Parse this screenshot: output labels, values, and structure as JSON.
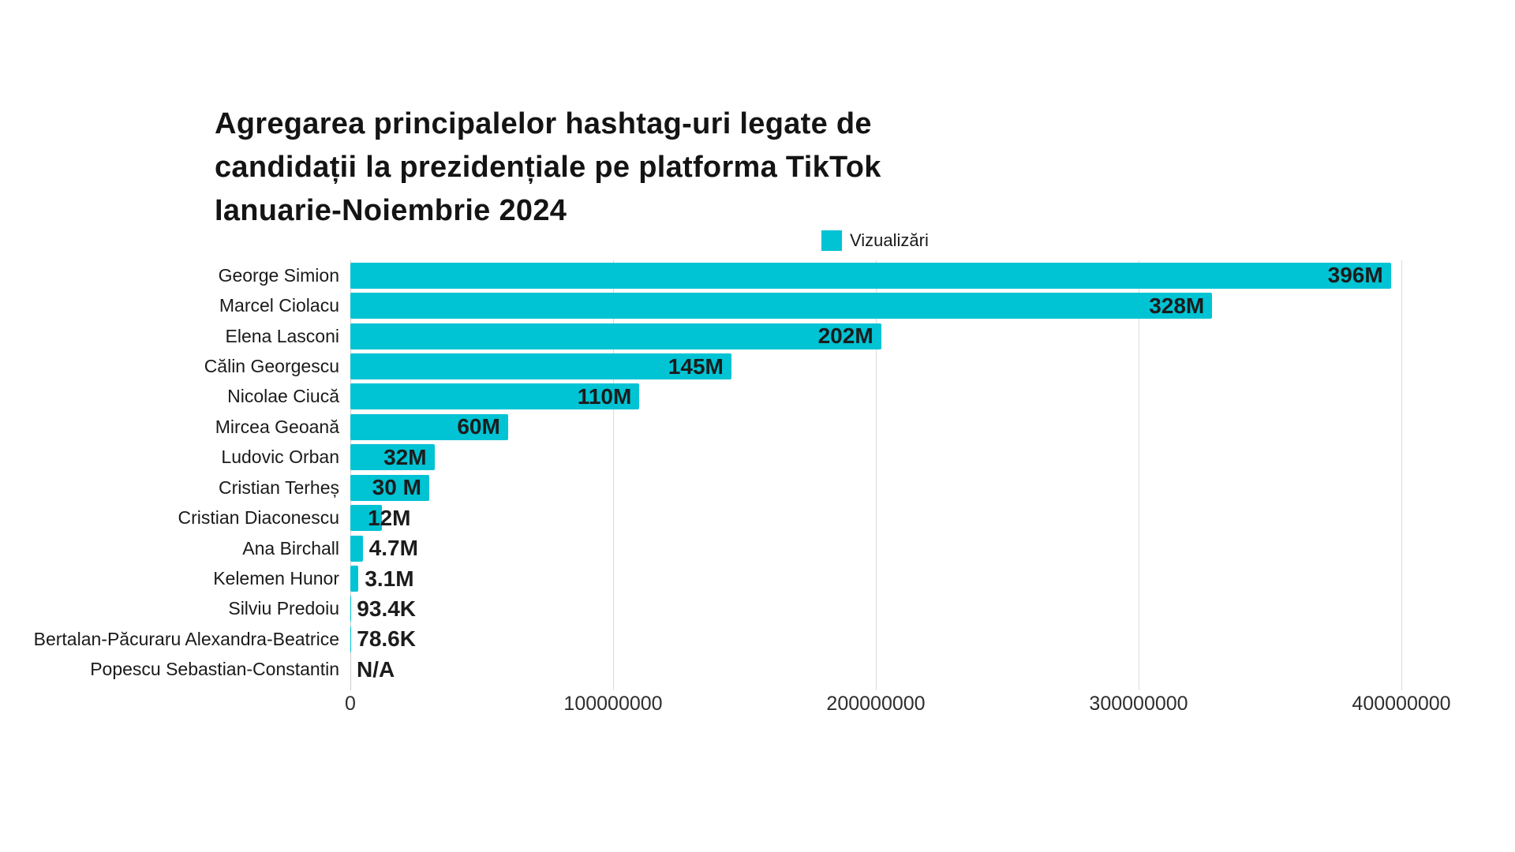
{
  "chart_data": {
    "type": "bar",
    "orientation": "horizontal",
    "title": "Agregarea principalelor hashtag-uri legate de candidații la prezidențiale pe platforma TikTok Ianuarie-Noiembrie 2024",
    "title_lines": [
      "Agregarea principalelor hashtag-uri legate de",
      "candidații la prezidențiale pe platforma TikTok",
      "Ianuarie-Noiembrie 2024"
    ],
    "legend": {
      "label": "Vizualizări",
      "position": "top-center"
    },
    "categories": [
      "George Simion",
      "Marcel Ciolacu",
      "Elena Lasconi",
      "Călin Georgescu",
      "Nicolae Ciucă",
      "Mircea Geoană",
      "Ludovic Orban",
      "Cristian Terheș",
      "Cristian Diaconescu",
      "Ana Birchall",
      "Kelemen Hunor",
      "Silviu Predoiu",
      "Bertalan-Păcuraru Alexandra-Beatrice",
      "Popescu Sebastian-Constantin"
    ],
    "values": [
      396000000,
      328000000,
      202000000,
      145000000,
      110000000,
      60000000,
      32000000,
      30000000,
      12000000,
      4700000,
      3100000,
      93400,
      78600,
      0
    ],
    "value_labels": [
      "396M",
      "328M",
      "202M",
      "145M",
      "110M",
      "60M",
      "32M",
      "30 M",
      "12M",
      "4.7M",
      "3.1M",
      "93.4K",
      "78.6K",
      "N/A"
    ],
    "value_label_placement": [
      "inside",
      "inside",
      "inside",
      "inside",
      "inside",
      "inside",
      "inside",
      "inside",
      "overflow",
      "outside",
      "outside",
      "outside",
      "outside",
      "outside"
    ],
    "xlim": [
      0,
      400000000
    ],
    "x_ticks": [
      0,
      100000000,
      200000000,
      300000000,
      400000000
    ],
    "x_tick_labels": [
      "0",
      "100000000",
      "200000000",
      "300000000",
      "400000000"
    ],
    "grid": true,
    "legend_series_name": "Vizualizări"
  },
  "colors": {
    "bar": "#00C3D4",
    "gridline": "#DBDBDB",
    "axis_line": "#CCCCCC",
    "title_text": "#141414",
    "label_text": "#1A1A1A",
    "value_text": "#1C1C1C",
    "background": "#FFFFFF"
  }
}
